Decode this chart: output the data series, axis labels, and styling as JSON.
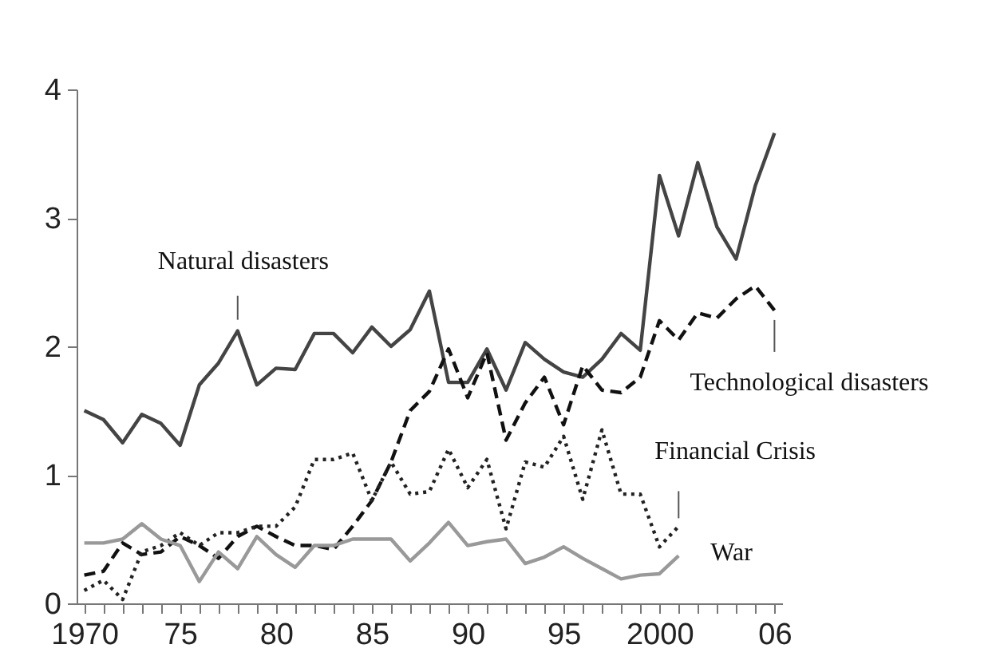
{
  "chart_data": {
    "type": "line",
    "grid": false,
    "legend": false,
    "marker": "none",
    "xlim": [
      1969.6,
      2006.4
    ],
    "ylim": [
      0,
      4
    ],
    "yticks": [
      0,
      1,
      2,
      3,
      4
    ],
    "xticks": [
      {
        "value": 1970,
        "label": "1970"
      },
      {
        "value": 1971,
        "label": null
      },
      {
        "value": 1972,
        "label": null
      },
      {
        "value": 1973,
        "label": null
      },
      {
        "value": 1974,
        "label": null
      },
      {
        "value": 1975,
        "label": "75"
      },
      {
        "value": 1976,
        "label": null
      },
      {
        "value": 1977,
        "label": null
      },
      {
        "value": 1978,
        "label": null
      },
      {
        "value": 1979,
        "label": null
      },
      {
        "value": 1980,
        "label": "80"
      },
      {
        "value": 1981,
        "label": null
      },
      {
        "value": 1982,
        "label": null
      },
      {
        "value": 1983,
        "label": null
      },
      {
        "value": 1984,
        "label": null
      },
      {
        "value": 1985,
        "label": "85"
      },
      {
        "value": 1986,
        "label": null
      },
      {
        "value": 1987,
        "label": null
      },
      {
        "value": 1988,
        "label": null
      },
      {
        "value": 1989,
        "label": null
      },
      {
        "value": 1990,
        "label": "90"
      },
      {
        "value": 1991,
        "label": null
      },
      {
        "value": 1992,
        "label": null
      },
      {
        "value": 1993,
        "label": null
      },
      {
        "value": 1994,
        "label": null
      },
      {
        "value": 1995,
        "label": "95"
      },
      {
        "value": 1996,
        "label": null
      },
      {
        "value": 1997,
        "label": null
      },
      {
        "value": 1998,
        "label": null
      },
      {
        "value": 1999,
        "label": null
      },
      {
        "value": 2000,
        "label": "2000"
      },
      {
        "value": 2001,
        "label": null
      },
      {
        "value": 2002,
        "label": null
      },
      {
        "value": 2003,
        "label": null
      },
      {
        "value": 2004,
        "label": null
      },
      {
        "value": 2005,
        "label": null
      },
      {
        "value": 2006,
        "label": "06"
      }
    ],
    "x": [
      1970,
      1971,
      1972,
      1973,
      1974,
      1975,
      1976,
      1977,
      1978,
      1979,
      1980,
      1981,
      1982,
      1983,
      1984,
      1985,
      1986,
      1987,
      1988,
      1989,
      1990,
      1991,
      1992,
      1993,
      1994,
      1995,
      1996,
      1997,
      1998,
      1999,
      2000,
      2001,
      2002,
      2003,
      2004,
      2005,
      2006
    ],
    "series": [
      {
        "name": "Natural disasters",
        "color": "#444444",
        "line_style": "solid",
        "values": [
          1.5,
          1.43,
          1.25,
          1.47,
          1.4,
          1.23,
          1.7,
          1.87,
          2.12,
          1.7,
          1.83,
          1.82,
          2.1,
          2.1,
          1.95,
          2.15,
          2.0,
          2.13,
          2.43,
          1.72,
          1.72,
          1.98,
          1.66,
          2.03,
          1.9,
          1.8,
          1.76,
          1.9,
          2.1,
          1.97,
          3.33,
          2.86,
          3.43,
          2.93,
          2.68,
          3.25,
          3.66
        ]
      },
      {
        "name": "Technological disasters",
        "color": "#111111",
        "line_style": "dashed",
        "values": [
          0.22,
          0.25,
          0.47,
          0.38,
          0.4,
          0.52,
          0.45,
          0.35,
          0.52,
          0.6,
          0.52,
          0.45,
          0.45,
          0.42,
          0.6,
          0.8,
          1.1,
          1.5,
          1.65,
          1.98,
          1.6,
          1.95,
          1.27,
          1.56,
          1.76,
          1.39,
          1.85,
          1.66,
          1.64,
          1.76,
          2.2,
          2.05,
          2.26,
          2.22,
          2.37,
          2.47,
          2.28
        ]
      },
      {
        "name": "Financial Crisis",
        "color": "#222222",
        "line_style": "dotted",
        "values": [
          0.1,
          0.18,
          0.03,
          0.4,
          0.45,
          0.55,
          0.45,
          0.55,
          0.55,
          0.6,
          0.6,
          0.75,
          1.12,
          1.12,
          1.17,
          0.8,
          1.1,
          0.85,
          0.87,
          1.2,
          0.9,
          1.12,
          0.58,
          1.1,
          1.06,
          1.3,
          0.81,
          1.35,
          0.85,
          0.85,
          0.44,
          0.6,
          null,
          null,
          null,
          null,
          null
        ]
      },
      {
        "name": "War",
        "color": "#999999",
        "line_style": "solid",
        "values": [
          0.47,
          0.47,
          0.5,
          0.62,
          0.5,
          0.45,
          0.17,
          0.4,
          0.27,
          0.52,
          0.38,
          0.28,
          0.45,
          0.45,
          0.5,
          0.5,
          0.5,
          0.33,
          0.47,
          0.63,
          0.45,
          0.48,
          0.5,
          0.31,
          0.36,
          0.44,
          0.35,
          0.27,
          0.19,
          0.22,
          0.23,
          0.37,
          null,
          null,
          null,
          null,
          null
        ]
      }
    ]
  }
}
